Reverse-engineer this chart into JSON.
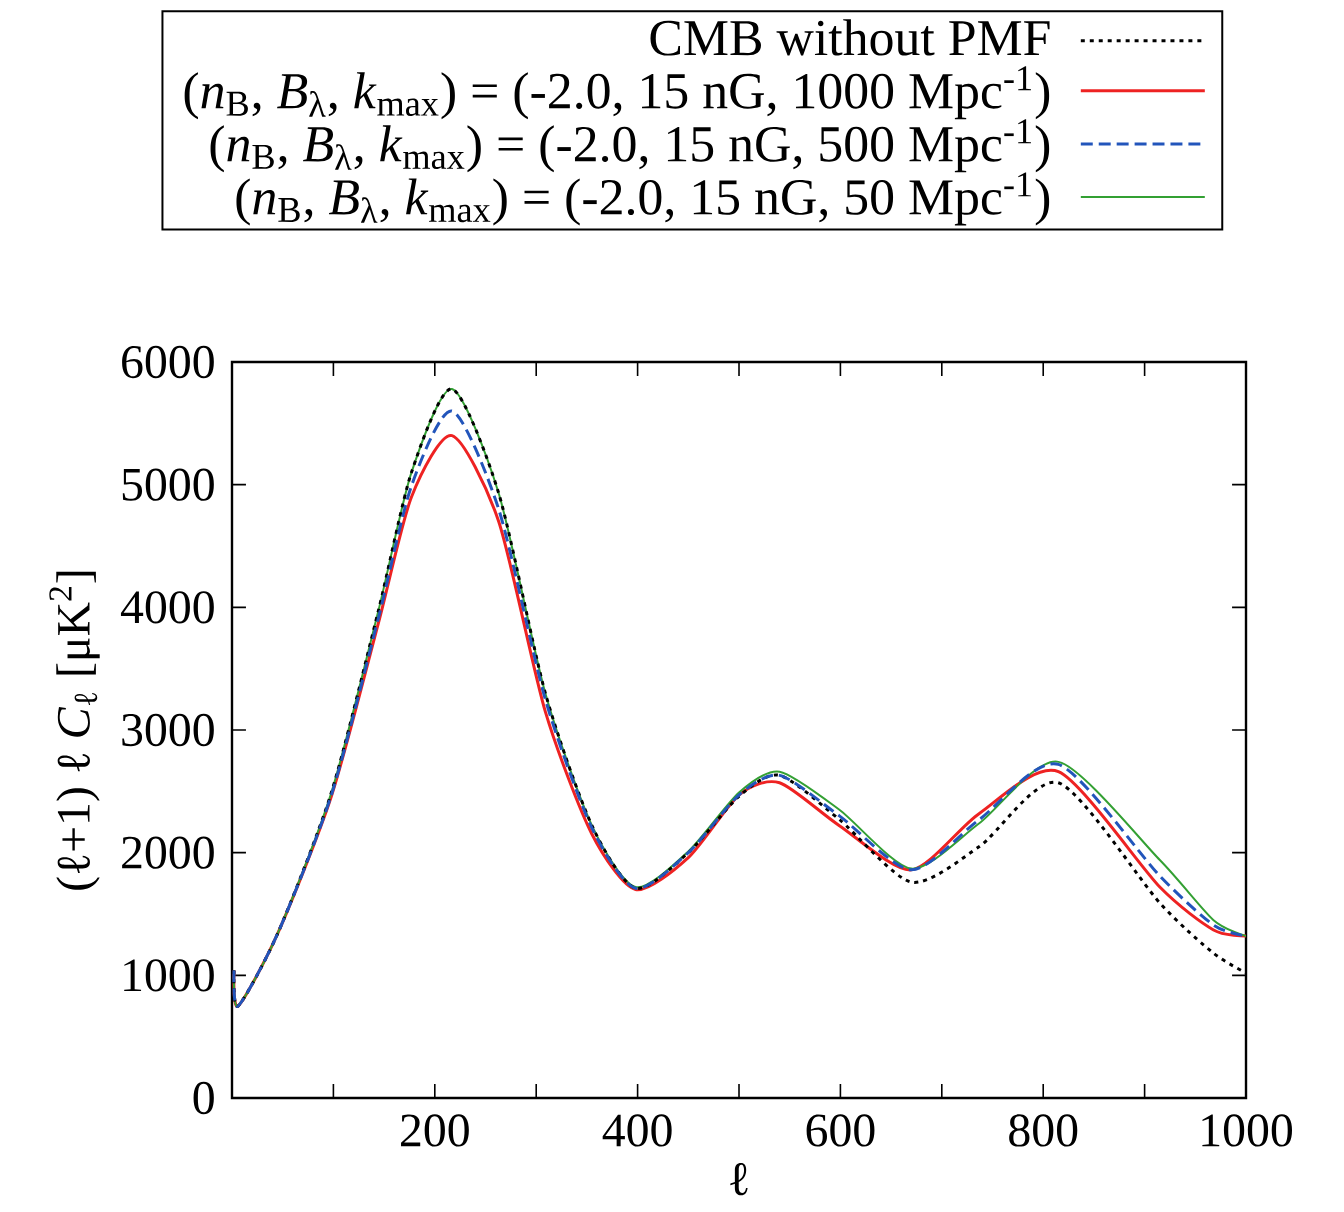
{
  "chart_data": {
    "type": "line",
    "xlabel": "ℓ",
    "ylabel": "(ℓ+1) ℓ *C*$_{ℓ}$ [μK$^{2}$]",
    "xlim": [
      0,
      1000
    ],
    "ylim": [
      0,
      6000
    ],
    "xticks": [
      {
        "value": 100,
        "label": null
      },
      200,
      {
        "value": 300,
        "label": null
      },
      400,
      {
        "value": 500,
        "label": null
      },
      600,
      {
        "value": 700,
        "label": null
      },
      800,
      {
        "value": 900,
        "label": null
      },
      1000
    ],
    "yticks": [
      0,
      1000,
      2000,
      3000,
      4000,
      5000,
      6000
    ],
    "legend": "top",
    "grid": false,
    "marker": "none",
    "x": [
      2,
      6,
      45,
      98,
      144,
      177,
      217,
      263,
      309,
      355,
      398,
      450,
      500,
      540,
      599,
      670,
      737,
      815,
      915,
      968,
      1000
    ],
    "series": [
      {
        "name": "CMB without PMF",
        "color": "#000000",
        "line_style": "dotted",
        "values": [
          1040,
          750,
          1340,
          2490,
          3960,
          5100,
          5780,
          4930,
          3300,
          2220,
          1710,
          2000,
          2460,
          2630,
          2270,
          1760,
          2050,
          2570,
          1590,
          1180,
          1020
        ]
      },
      {
        "name": "(*n*$_{B}$, *B*$_{λ}$, *k*$_{max}$) = (-2.0, 15 nG, 1000 Mpc$^{-1}$)",
        "color": "#ee2222",
        "line_style": "solid",
        "values": [
          1040,
          750,
          1340,
          2460,
          3860,
          4900,
          5400,
          4700,
          3150,
          2150,
          1700,
          1960,
          2470,
          2570,
          2220,
          1860,
          2320,
          2660,
          1720,
          1370,
          1320
        ]
      },
      {
        "name": "(*n*$_{B}$, *B*$_{λ}$, *k*$_{max}$) = (-2.0, 15 nG, 500 Mpc$^{-1}$)",
        "color": "#2255bb",
        "line_style": "dashed",
        "values": [
          1040,
          750,
          1340,
          2470,
          3900,
          4990,
          5600,
          4800,
          3250,
          2200,
          1710,
          2000,
          2470,
          2630,
          2300,
          1860,
          2270,
          2720,
          1810,
          1410,
          1320
        ]
      },
      {
        "name": "(*n*$_{B}$, *B*$_{λ}$, *k*$_{max}$) = (-2.0, 15 nG, 50 Mpc$^{-1}$)",
        "color": "#33a033",
        "line_style": "solid",
        "values": [
          1040,
          750,
          1340,
          2490,
          3960,
          5100,
          5780,
          4930,
          3300,
          2220,
          1720,
          2010,
          2490,
          2660,
          2350,
          1870,
          2240,
          2740,
          1940,
          1450,
          1320
        ]
      }
    ]
  }
}
